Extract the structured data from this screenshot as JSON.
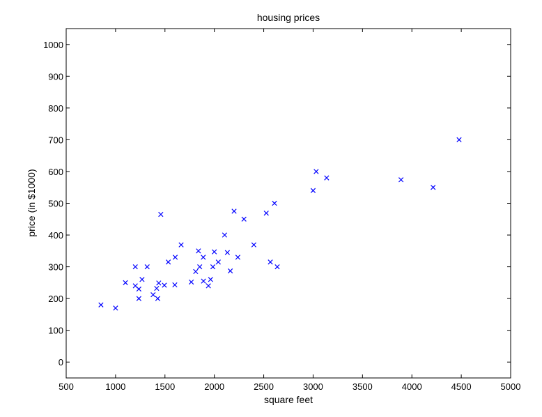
{
  "chart_data": {
    "type": "scatter",
    "title": "housing prices",
    "xlabel": "square feet",
    "ylabel": "price (in $1000)",
    "xlim": [
      500,
      5000
    ],
    "ylim": [
      -50,
      1050
    ],
    "xticks": [
      500,
      1000,
      1500,
      2000,
      2500,
      3000,
      3500,
      4000,
      4500,
      5000
    ],
    "yticks": [
      0,
      100,
      200,
      300,
      400,
      500,
      600,
      700,
      800,
      900,
      1000
    ],
    "marker": "x",
    "marker_color": "#0000ff",
    "grid": false,
    "points": [
      [
        852,
        180
      ],
      [
        1000,
        170
      ],
      [
        1100,
        250
      ],
      [
        1200,
        240
      ],
      [
        1200,
        300
      ],
      [
        1236,
        200
      ],
      [
        1236,
        230
      ],
      [
        1268,
        260
      ],
      [
        1320,
        300
      ],
      [
        1380,
        212
      ],
      [
        1416,
        232
      ],
      [
        1427,
        200
      ],
      [
        1437,
        249
      ],
      [
        1458,
        465
      ],
      [
        1494,
        242
      ],
      [
        1534,
        315
      ],
      [
        1600,
        243
      ],
      [
        1604,
        330
      ],
      [
        1664,
        369
      ],
      [
        1767,
        252
      ],
      [
        1811,
        285
      ],
      [
        1839,
        350
      ],
      [
        1852,
        300
      ],
      [
        1888,
        330
      ],
      [
        1890,
        255
      ],
      [
        1940,
        240
      ],
      [
        1962,
        260
      ],
      [
        1985,
        300
      ],
      [
        2000,
        347
      ],
      [
        2040,
        315
      ],
      [
        2104,
        400
      ],
      [
        2132,
        345
      ],
      [
        2162,
        287
      ],
      [
        2200,
        475
      ],
      [
        2238,
        330
      ],
      [
        2300,
        450
      ],
      [
        2400,
        369
      ],
      [
        2526,
        469
      ],
      [
        2567,
        315
      ],
      [
        2609,
        500
      ],
      [
        2637,
        300
      ],
      [
        3000,
        540
      ],
      [
        3031,
        600
      ],
      [
        3137,
        580
      ],
      [
        3890,
        574
      ],
      [
        4215,
        550
      ],
      [
        4478,
        700
      ]
    ]
  }
}
